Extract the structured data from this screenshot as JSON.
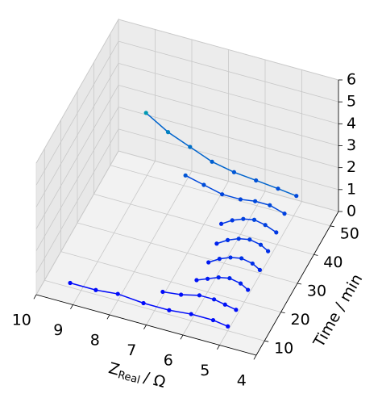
{
  "chart_data": {
    "type": "line3d",
    "xlabel_base": "Z",
    "xlabel_sub": "Real",
    "xlabel_unit": "/ Ω",
    "ylabel": "Time / min",
    "xlim": [
      10,
      4
    ],
    "xticks": [
      10,
      9,
      8,
      7,
      6,
      5,
      4
    ],
    "ylim": [
      5,
      55
    ],
    "yticks": [
      10,
      20,
      30,
      40,
      50
    ],
    "zlim": [
      0,
      6
    ],
    "zticks": [
      0,
      1,
      2,
      3,
      4,
      5,
      6
    ],
    "grid": true,
    "colormap": [
      "#0000ff",
      "#00ff80"
    ],
    "series": [
      {
        "time": 10,
        "x": [
          9.3,
          8.6,
          8.0,
          7.3,
          6.6,
          6.0,
          5.4,
          5.0
        ],
        "values": [
          0.2,
          0.2,
          0.3,
          0.2,
          0.2,
          0.3,
          0.3,
          0.2
        ]
      },
      {
        "time": 15,
        "x": [
          7.0,
          6.5,
          6.0,
          5.6,
          5.3,
          5.0
        ],
        "values": [
          0.2,
          0.3,
          0.5,
          0.5,
          0.4,
          0.3
        ]
      },
      {
        "time": 20,
        "x": [
          6.3,
          6.0,
          5.7,
          5.4,
          5.1,
          4.9
        ],
        "values": [
          0.4,
          0.6,
          0.8,
          0.9,
          0.8,
          0.6
        ]
      },
      {
        "time": 25,
        "x": [
          6.2,
          5.9,
          5.6,
          5.3,
          5.0,
          4.8
        ],
        "values": [
          0.6,
          0.9,
          1.1,
          1.2,
          1.1,
          0.9
        ]
      },
      {
        "time": 30,
        "x": [
          6.2,
          5.9,
          5.6,
          5.3,
          5.0,
          4.8
        ],
        "values": [
          0.8,
          1.1,
          1.3,
          1.4,
          1.3,
          1.1
        ]
      },
      {
        "time": 35,
        "x": [
          6.3,
          6.0,
          5.7,
          5.4,
          5.1,
          4.8
        ],
        "values": [
          1.0,
          1.3,
          1.5,
          1.6,
          1.5,
          1.3
        ]
      },
      {
        "time": 40,
        "x": [
          7.5,
          7.0,
          6.5,
          6.0,
          5.6,
          5.2,
          4.8
        ],
        "values": [
          2.0,
          1.8,
          1.6,
          1.6,
          1.7,
          1.7,
          1.5
        ]
      },
      {
        "time": 45,
        "x": [
          8.8,
          8.2,
          7.6,
          7.0,
          6.4,
          5.8,
          5.2,
          4.7
        ],
        "values": [
          3.6,
          3.0,
          2.6,
          2.2,
          2.0,
          1.9,
          1.8,
          1.7
        ]
      }
    ]
  }
}
